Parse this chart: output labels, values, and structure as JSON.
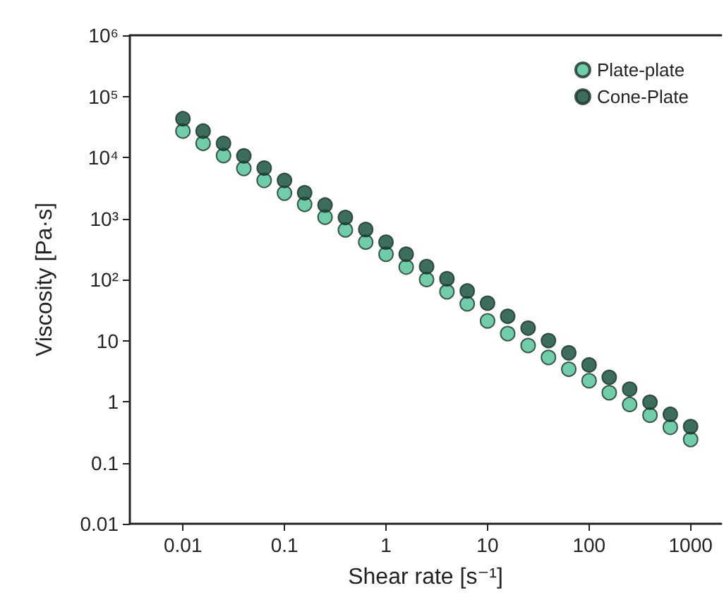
{
  "chart_data": {
    "type": "scatter",
    "xlabel": "Shear rate [s⁻¹]",
    "ylabel": "Viscosity [Pa·s]",
    "log": "xy",
    "grid": false,
    "legend": "top right",
    "marker": "circle",
    "x": [
      0.01,
      0.0158,
      0.0251,
      0.0398,
      0.0631,
      0.1,
      0.158,
      0.251,
      0.398,
      0.631,
      1,
      1.58,
      2.51,
      3.98,
      6.31,
      10,
      15.8,
      25.1,
      39.8,
      63.1,
      100,
      158,
      251,
      398,
      631,
      1000
    ],
    "xlim": [
      0.003,
      2000
    ],
    "xticks": [
      0.01,
      0.1,
      1,
      10,
      100,
      1000
    ],
    "ylim": [
      0.01,
      1000000
    ],
    "yticks": [
      0.01,
      0.1,
      1,
      10,
      {
        "value": 100,
        "label": "10²"
      },
      {
        "value": 1000,
        "label": "10³"
      },
      {
        "value": 10000,
        "label": "10⁴"
      },
      {
        "value": 100000,
        "label": "10⁵"
      },
      {
        "value": 1000000,
        "label": "10⁶"
      }
    ],
    "series": [
      {
        "name": "Plate-plate",
        "color": "#4dbf95",
        "values": [
          27000,
          17000,
          10700,
          6600,
          4200,
          2600,
          1700,
          1050,
          650,
          410,
          260,
          160,
          100,
          63,
          40,
          21,
          13,
          8.3,
          5.3,
          3.4,
          2.2,
          1.4,
          0.9,
          0.6,
          0.38,
          0.24
        ]
      },
      {
        "name": "Cone-Plate",
        "color": "#0d4a35",
        "values": [
          43000,
          27000,
          17000,
          10600,
          6700,
          4200,
          2640,
          1660,
          1040,
          660,
          410,
          260,
          163,
          103,
          65,
          41,
          25,
          16,
          10,
          6.3,
          4,
          2.5,
          1.6,
          0.98,
          0.62,
          0.39
        ]
      }
    ]
  }
}
